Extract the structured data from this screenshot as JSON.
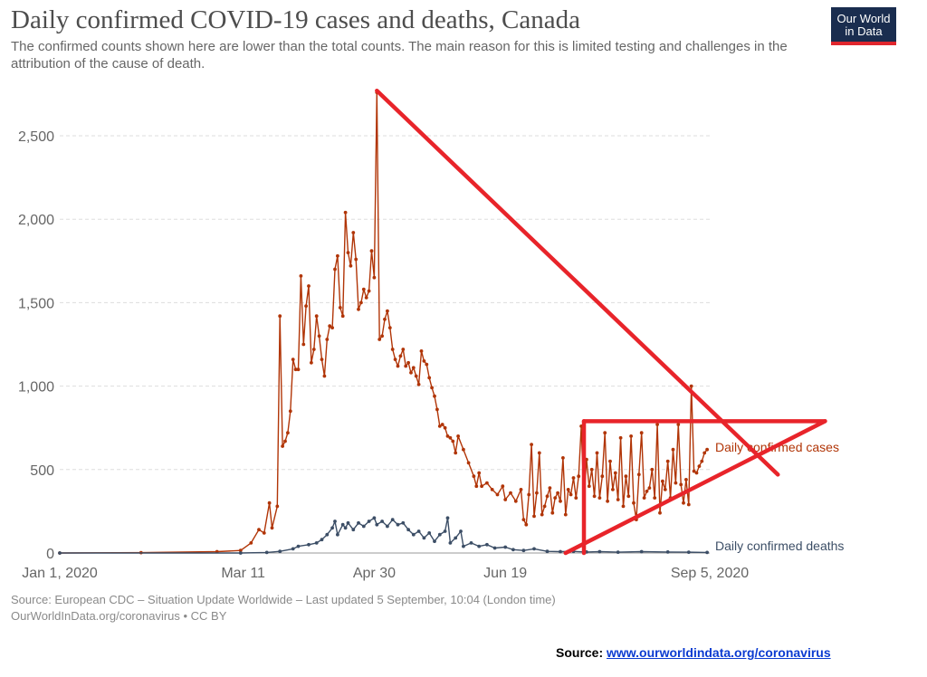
{
  "header": {
    "title": "Daily confirmed COVID-19 cases and deaths, Canada",
    "subtitle": "The confirmed counts shown here are lower than the total counts. The main reason for this is limited testing and challenges in the attribution of the cause of death."
  },
  "logo": {
    "line1": "Our World",
    "line2": "in Data"
  },
  "footer": {
    "source": "Source: European CDC – Situation Update Worldwide – Last updated 5 September, 10:04 (London time)",
    "credit": "OurWorldInData.org/coronavirus • CC BY",
    "link_prefix": "Source:",
    "link_text": "www.ourworldindata.org/coronavirus"
  },
  "colors": {
    "cases": "#b13507",
    "deaths": "#3c4e66",
    "annotation": "#e8242a",
    "grid": "#dddddd"
  },
  "chart_data": {
    "type": "line",
    "title": "Daily confirmed COVID-19 cases and deaths, Canada",
    "x_tick_labels": [
      "Jan 1, 2020",
      "Mar 11",
      "Apr 30",
      "Jun 19",
      "Sep 5, 2020"
    ],
    "y_tick_labels": [
      "0",
      "500",
      "1,000",
      "1,500",
      "2,000",
      "2,500"
    ],
    "ylim": [
      0,
      2800
    ],
    "grid": "horizontal dashed",
    "series": [
      {
        "name": "Daily confirmed cases",
        "points": [
          [
            "2020-01-01",
            0
          ],
          [
            "2020-02-01",
            2
          ],
          [
            "2020-03-01",
            8
          ],
          [
            "2020-03-10",
            15
          ],
          [
            "2020-03-14",
            60
          ],
          [
            "2020-03-17",
            140
          ],
          [
            "2020-03-19",
            120
          ],
          [
            "2020-03-21",
            300
          ],
          [
            "2020-03-22",
            150
          ],
          [
            "2020-03-24",
            280
          ],
          [
            "2020-03-25",
            1420
          ],
          [
            "2020-03-26",
            640
          ],
          [
            "2020-03-27",
            670
          ],
          [
            "2020-03-28",
            720
          ],
          [
            "2020-03-29",
            850
          ],
          [
            "2020-03-30",
            1160
          ],
          [
            "2020-03-31",
            1100
          ],
          [
            "2020-04-01",
            1100
          ],
          [
            "2020-04-02",
            1660
          ],
          [
            "2020-04-03",
            1250
          ],
          [
            "2020-04-04",
            1480
          ],
          [
            "2020-04-05",
            1600
          ],
          [
            "2020-04-06",
            1140
          ],
          [
            "2020-04-07",
            1220
          ],
          [
            "2020-04-08",
            1420
          ],
          [
            "2020-04-09",
            1300
          ],
          [
            "2020-04-10",
            1160
          ],
          [
            "2020-04-11",
            1060
          ],
          [
            "2020-04-12",
            1280
          ],
          [
            "2020-04-13",
            1360
          ],
          [
            "2020-04-14",
            1350
          ],
          [
            "2020-04-15",
            1700
          ],
          [
            "2020-04-16",
            1780
          ],
          [
            "2020-04-17",
            1470
          ],
          [
            "2020-04-18",
            1420
          ],
          [
            "2020-04-19",
            2040
          ],
          [
            "2020-04-20",
            1800
          ],
          [
            "2020-04-21",
            1720
          ],
          [
            "2020-04-22",
            1920
          ],
          [
            "2020-04-23",
            1760
          ],
          [
            "2020-04-24",
            1460
          ],
          [
            "2020-04-25",
            1500
          ],
          [
            "2020-04-26",
            1580
          ],
          [
            "2020-04-27",
            1530
          ],
          [
            "2020-04-28",
            1570
          ],
          [
            "2020-04-29",
            1810
          ],
          [
            "2020-04-30",
            1650
          ],
          [
            "2020-05-01",
            2760
          ],
          [
            "2020-05-02",
            1280
          ],
          [
            "2020-05-03",
            1300
          ],
          [
            "2020-05-04",
            1400
          ],
          [
            "2020-05-05",
            1450
          ],
          [
            "2020-05-06",
            1350
          ],
          [
            "2020-05-07",
            1220
          ],
          [
            "2020-05-08",
            1160
          ],
          [
            "2020-05-09",
            1120
          ],
          [
            "2020-05-10",
            1180
          ],
          [
            "2020-05-11",
            1220
          ],
          [
            "2020-05-12",
            1120
          ],
          [
            "2020-05-13",
            1140
          ],
          [
            "2020-05-14",
            1080
          ],
          [
            "2020-05-15",
            1110
          ],
          [
            "2020-05-16",
            1060
          ],
          [
            "2020-05-17",
            1010
          ],
          [
            "2020-05-18",
            1210
          ],
          [
            "2020-05-19",
            1150
          ],
          [
            "2020-05-20",
            1130
          ],
          [
            "2020-05-21",
            1050
          ],
          [
            "2020-05-22",
            990
          ],
          [
            "2020-05-23",
            940
          ],
          [
            "2020-05-24",
            860
          ],
          [
            "2020-05-25",
            760
          ],
          [
            "2020-05-26",
            770
          ],
          [
            "2020-05-27",
            750
          ],
          [
            "2020-05-28",
            700
          ],
          [
            "2020-05-29",
            690
          ],
          [
            "2020-05-30",
            670
          ],
          [
            "2020-05-31",
            600
          ],
          [
            "2020-06-01",
            700
          ],
          [
            "2020-06-03",
            620
          ],
          [
            "2020-06-05",
            540
          ],
          [
            "2020-06-07",
            460
          ],
          [
            "2020-06-08",
            400
          ],
          [
            "2020-06-09",
            480
          ],
          [
            "2020-06-10",
            400
          ],
          [
            "2020-06-12",
            420
          ],
          [
            "2020-06-14",
            380
          ],
          [
            "2020-06-16",
            350
          ],
          [
            "2020-06-18",
            400
          ],
          [
            "2020-06-19",
            320
          ],
          [
            "2020-06-21",
            360
          ],
          [
            "2020-06-23",
            310
          ],
          [
            "2020-06-25",
            380
          ],
          [
            "2020-06-26",
            200
          ],
          [
            "2020-06-27",
            170
          ],
          [
            "2020-06-28",
            350
          ],
          [
            "2020-06-29",
            650
          ],
          [
            "2020-06-30",
            220
          ],
          [
            "2020-07-01",
            360
          ],
          [
            "2020-07-02",
            600
          ],
          [
            "2020-07-03",
            230
          ],
          [
            "2020-07-04",
            280
          ],
          [
            "2020-07-05",
            340
          ],
          [
            "2020-07-06",
            390
          ],
          [
            "2020-07-07",
            240
          ],
          [
            "2020-07-08",
            330
          ],
          [
            "2020-07-09",
            360
          ],
          [
            "2020-07-10",
            310
          ],
          [
            "2020-07-11",
            570
          ],
          [
            "2020-07-12",
            230
          ],
          [
            "2020-07-13",
            380
          ],
          [
            "2020-07-14",
            350
          ],
          [
            "2020-07-15",
            450
          ],
          [
            "2020-07-16",
            330
          ],
          [
            "2020-07-17",
            460
          ],
          [
            "2020-07-18",
            760
          ],
          [
            "2020-07-19",
            320
          ],
          [
            "2020-07-20",
            560
          ],
          [
            "2020-07-21",
            400
          ],
          [
            "2020-07-22",
            500
          ],
          [
            "2020-07-23",
            340
          ],
          [
            "2020-07-24",
            600
          ],
          [
            "2020-07-25",
            330
          ],
          [
            "2020-07-26",
            460
          ],
          [
            "2020-07-27",
            720
          ],
          [
            "2020-07-28",
            310
          ],
          [
            "2020-07-29",
            550
          ],
          [
            "2020-07-30",
            380
          ],
          [
            "2020-07-31",
            480
          ],
          [
            "2020-08-01",
            320
          ],
          [
            "2020-08-02",
            690
          ],
          [
            "2020-08-03",
            280
          ],
          [
            "2020-08-04",
            460
          ],
          [
            "2020-08-05",
            340
          ],
          [
            "2020-08-06",
            700
          ],
          [
            "2020-08-07",
            300
          ],
          [
            "2020-08-08",
            200
          ],
          [
            "2020-08-09",
            470
          ],
          [
            "2020-08-10",
            720
          ],
          [
            "2020-08-11",
            330
          ],
          [
            "2020-08-12",
            370
          ],
          [
            "2020-08-13",
            390
          ],
          [
            "2020-08-14",
            500
          ],
          [
            "2020-08-15",
            330
          ],
          [
            "2020-08-16",
            770
          ],
          [
            "2020-08-17",
            240
          ],
          [
            "2020-08-18",
            430
          ],
          [
            "2020-08-19",
            380
          ],
          [
            "2020-08-20",
            550
          ],
          [
            "2020-08-21",
            330
          ],
          [
            "2020-08-22",
            620
          ],
          [
            "2020-08-23",
            420
          ],
          [
            "2020-08-24",
            770
          ],
          [
            "2020-08-25",
            410
          ],
          [
            "2020-08-26",
            300
          ],
          [
            "2020-08-27",
            440
          ],
          [
            "2020-08-28",
            290
          ],
          [
            "2020-08-29",
            1000
          ],
          [
            "2020-08-30",
            490
          ],
          [
            "2020-08-31",
            480
          ],
          [
            "2020-09-01",
            520
          ],
          [
            "2020-09-02",
            550
          ],
          [
            "2020-09-03",
            600
          ],
          [
            "2020-09-04",
            620
          ]
        ]
      },
      {
        "name": "Daily confirmed deaths",
        "points": [
          [
            "2020-01-01",
            0
          ],
          [
            "2020-03-10",
            0
          ],
          [
            "2020-03-20",
            3
          ],
          [
            "2020-03-25",
            10
          ],
          [
            "2020-03-30",
            25
          ],
          [
            "2020-04-01",
            40
          ],
          [
            "2020-04-05",
            50
          ],
          [
            "2020-04-08",
            60
          ],
          [
            "2020-04-10",
            80
          ],
          [
            "2020-04-12",
            110
          ],
          [
            "2020-04-14",
            150
          ],
          [
            "2020-04-15",
            190
          ],
          [
            "2020-04-16",
            110
          ],
          [
            "2020-04-18",
            170
          ],
          [
            "2020-04-19",
            150
          ],
          [
            "2020-04-20",
            180
          ],
          [
            "2020-04-22",
            140
          ],
          [
            "2020-04-24",
            180
          ],
          [
            "2020-04-26",
            160
          ],
          [
            "2020-04-28",
            190
          ],
          [
            "2020-04-30",
            210
          ],
          [
            "2020-05-01",
            170
          ],
          [
            "2020-05-03",
            190
          ],
          [
            "2020-05-05",
            160
          ],
          [
            "2020-05-07",
            200
          ],
          [
            "2020-05-09",
            170
          ],
          [
            "2020-05-11",
            180
          ],
          [
            "2020-05-13",
            140
          ],
          [
            "2020-05-15",
            110
          ],
          [
            "2020-05-17",
            130
          ],
          [
            "2020-05-19",
            90
          ],
          [
            "2020-05-21",
            120
          ],
          [
            "2020-05-23",
            70
          ],
          [
            "2020-05-25",
            110
          ],
          [
            "2020-05-27",
            130
          ],
          [
            "2020-05-28",
            210
          ],
          [
            "2020-05-29",
            60
          ],
          [
            "2020-05-31",
            90
          ],
          [
            "2020-06-02",
            130
          ],
          [
            "2020-06-03",
            40
          ],
          [
            "2020-06-06",
            60
          ],
          [
            "2020-06-09",
            40
          ],
          [
            "2020-06-12",
            50
          ],
          [
            "2020-06-15",
            30
          ],
          [
            "2020-06-19",
            35
          ],
          [
            "2020-06-22",
            20
          ],
          [
            "2020-06-26",
            15
          ],
          [
            "2020-06-30",
            25
          ],
          [
            "2020-07-05",
            10
          ],
          [
            "2020-07-10",
            8
          ],
          [
            "2020-07-15",
            10
          ],
          [
            "2020-07-20",
            6
          ],
          [
            "2020-07-25",
            8
          ],
          [
            "2020-08-01",
            5
          ],
          [
            "2020-08-10",
            8
          ],
          [
            "2020-08-20",
            6
          ],
          [
            "2020-08-28",
            5
          ],
          [
            "2020-09-04",
            3
          ]
        ]
      }
    ],
    "annotations": [
      {
        "type": "line",
        "from": [
          "2020-05-01",
          2770
        ],
        "to": [
          "2020-10-01",
          470
        ]
      },
      {
        "type": "line",
        "from": [
          "2020-07-19",
          790
        ],
        "to": [
          "2020-10-19",
          790
        ]
      },
      {
        "type": "line",
        "from": [
          "2020-07-19",
          790
        ],
        "to": [
          "2020-07-19",
          0
        ]
      },
      {
        "type": "line",
        "from": [
          "2020-07-12",
          0
        ],
        "to": [
          "2020-10-19",
          790
        ]
      }
    ]
  }
}
